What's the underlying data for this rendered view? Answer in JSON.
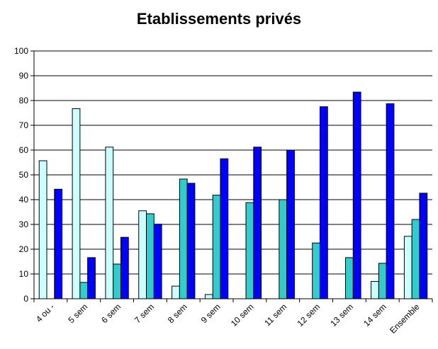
{
  "chart_data": {
    "type": "bar",
    "title": "Etablissements privés",
    "xlabel": "",
    "ylabel": "",
    "ylim": [
      0,
      100
    ],
    "yticks": [
      0,
      10,
      20,
      30,
      40,
      50,
      60,
      70,
      80,
      90,
      100
    ],
    "grid": true,
    "categories": [
      "4 ou -",
      "5 sem",
      "6 sem",
      "7 sem",
      "8 sem",
      "9 sem",
      "10 sem",
      "11 sem",
      "12 sem",
      "13 sem",
      "14 sem",
      "Ensemble"
    ],
    "series": [
      {
        "color": "#ccffff",
        "values": [
          55.7,
          76.7,
          61.2,
          35.5,
          5.1,
          1.7,
          0,
          0,
          0,
          0,
          7.0,
          25.2
        ]
      },
      {
        "color": "#33cccc",
        "values": [
          0,
          6.6,
          14.0,
          34.3,
          48.3,
          41.8,
          38.8,
          40.0,
          22.5,
          16.6,
          14.3,
          32.0
        ]
      },
      {
        "color": "#0000ff",
        "values": [
          44.2,
          16.6,
          24.8,
          30.1,
          46.6,
          56.5,
          61.2,
          60.0,
          77.5,
          83.4,
          78.7,
          42.6
        ]
      }
    ]
  }
}
